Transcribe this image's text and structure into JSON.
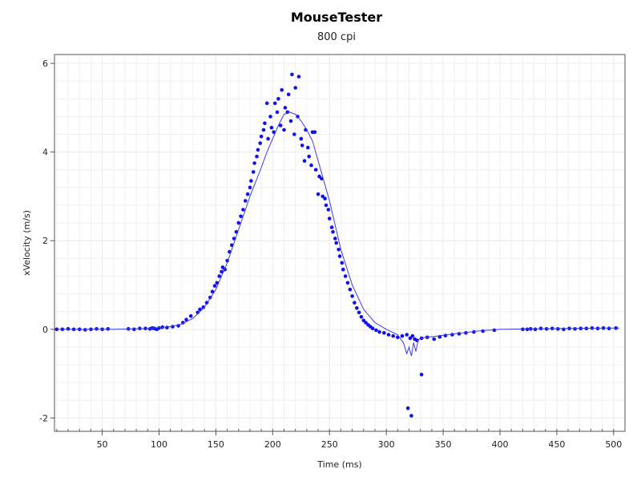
{
  "chart_data": {
    "type": "scatter",
    "title": "MouseTester",
    "subtitle": "800 cpi",
    "xlabel": "Time (ms)",
    "ylabel": "xVelocity (m/s)",
    "xlim": [
      8,
      510
    ],
    "ylim": [
      -2.3,
      6.2
    ],
    "x_ticks": [
      50,
      100,
      150,
      200,
      250,
      300,
      350,
      400,
      450,
      500
    ],
    "y_ticks": [
      -2,
      0,
      2,
      4,
      6
    ],
    "grid": true,
    "legend": "none",
    "colors": {
      "points": "#1010ee",
      "line": "#3a3aee",
      "grid": "#ececec",
      "axis": "#555555"
    },
    "series": [
      {
        "kind": "points",
        "x": [
          10,
          15,
          20,
          25,
          30,
          35,
          40,
          45,
          50,
          55,
          73,
          78,
          83,
          88,
          92,
          94,
          96,
          98,
          100,
          103,
          107,
          112,
          117,
          121,
          124,
          128,
          134,
          136,
          139,
          142,
          145,
          147,
          149,
          151,
          153,
          155,
          156,
          158,
          160,
          162,
          164,
          166,
          168,
          170,
          172,
          174,
          176,
          178,
          180,
          181,
          183,
          184,
          186,
          187,
          189,
          190,
          192,
          193,
          195,
          196,
          198,
          199,
          201,
          202,
          204,
          205,
          207,
          208,
          210,
          211,
          213,
          214,
          216,
          217,
          219,
          220,
          222,
          223,
          225,
          226,
          228,
          229,
          231,
          232,
          234,
          235,
          237,
          238,
          240,
          241,
          243,
          244,
          246,
          247,
          249,
          250,
          252,
          253,
          255,
          256,
          258,
          259,
          261,
          262,
          264,
          266,
          268,
          270,
          272,
          274,
          276,
          278,
          280,
          282,
          284,
          286,
          288,
          291,
          294,
          298,
          302,
          306,
          310,
          314,
          318,
          321,
          323,
          325,
          327,
          331,
          336,
          342,
          347,
          352,
          358,
          364,
          370,
          377,
          385,
          395,
          420,
          424,
          427,
          431,
          436,
          441,
          446,
          451,
          456,
          461,
          466,
          471,
          476,
          481,
          486,
          491,
          496,
          502
        ],
        "y": [
          0.0,
          0.0,
          0.01,
          0.0,
          0.0,
          -0.01,
          0.0,
          0.01,
          0.0,
          0.01,
          0.01,
          0.0,
          0.02,
          0.02,
          0.01,
          0.03,
          0.02,
          0.0,
          0.03,
          0.05,
          0.04,
          0.06,
          0.08,
          0.15,
          0.22,
          0.3,
          0.38,
          0.45,
          0.5,
          0.6,
          0.72,
          0.85,
          0.98,
          1.05,
          1.2,
          1.3,
          1.4,
          1.35,
          1.55,
          1.75,
          1.9,
          2.05,
          2.2,
          2.4,
          2.55,
          2.7,
          2.9,
          3.05,
          3.2,
          3.35,
          3.55,
          3.75,
          3.9,
          4.05,
          4.2,
          4.35,
          4.5,
          4.65,
          5.1,
          4.3,
          4.8,
          4.55,
          4.45,
          5.1,
          4.9,
          5.2,
          4.6,
          5.4,
          4.5,
          5.0,
          4.9,
          5.3,
          4.7,
          5.75,
          4.4,
          5.45,
          4.8,
          5.7,
          4.3,
          4.15,
          3.8,
          4.5,
          4.1,
          3.9,
          3.7,
          4.45,
          4.45,
          3.6,
          3.05,
          3.45,
          3.4,
          3.0,
          2.95,
          2.8,
          2.7,
          2.5,
          2.3,
          2.2,
          2.05,
          1.95,
          1.8,
          1.65,
          1.5,
          1.35,
          1.2,
          1.05,
          0.9,
          0.75,
          0.6,
          0.48,
          0.38,
          0.28,
          0.2,
          0.15,
          0.1,
          0.06,
          0.02,
          -0.02,
          -0.06,
          -0.08,
          -0.12,
          -0.15,
          -0.18,
          -0.15,
          -0.12,
          -0.2,
          -0.15,
          -0.22,
          -0.25,
          -0.2,
          -0.18,
          -0.22,
          -0.17,
          -0.14,
          -0.12,
          -0.1,
          -0.08,
          -0.06,
          -0.04,
          -0.02,
          0.0,
          0.0,
          0.01,
          0.0,
          0.02,
          0.01,
          0.02,
          0.01,
          0.0,
          0.02,
          0.01,
          0.02,
          0.02,
          0.03,
          0.02,
          0.03,
          0.02,
          0.03
        ]
      },
      {
        "kind": "outliers",
        "x": [
          319,
          322,
          331
        ],
        "y": [
          -1.78,
          -1.95,
          -1.02
        ]
      },
      {
        "kind": "line",
        "x": [
          10,
          60,
          90,
          110,
          120,
          130,
          140,
          150,
          160,
          170,
          180,
          190,
          195,
          200,
          205,
          210,
          215,
          220,
          225,
          230,
          235,
          240,
          250,
          260,
          270,
          280,
          290,
          300,
          310,
          315,
          318,
          320,
          322,
          324,
          326,
          328,
          330,
          335,
          345,
          360,
          380,
          400,
          430,
          460,
          490,
          505
        ],
        "y": [
          0.0,
          0.0,
          0.02,
          0.06,
          0.12,
          0.25,
          0.5,
          0.9,
          1.5,
          2.25,
          3.0,
          3.65,
          4.0,
          4.3,
          4.6,
          4.85,
          4.9,
          4.85,
          4.7,
          4.5,
          4.25,
          3.8,
          2.9,
          1.8,
          1.0,
          0.45,
          0.15,
          0.0,
          -0.12,
          -0.3,
          -0.55,
          -0.4,
          -0.6,
          -0.3,
          -0.5,
          -0.25,
          -0.2,
          -0.18,
          -0.15,
          -0.1,
          -0.04,
          0.0,
          0.01,
          0.02,
          0.03,
          0.03
        ]
      }
    ]
  }
}
